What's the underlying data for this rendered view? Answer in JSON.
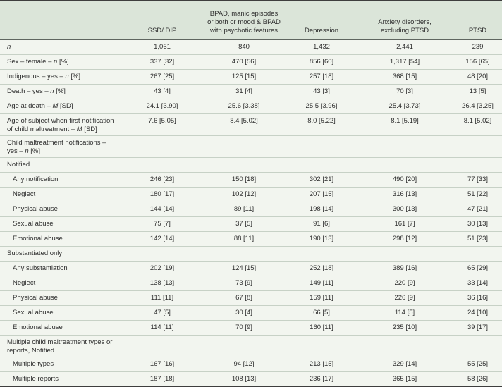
{
  "colors": {
    "frame": "#3e3e3e",
    "header_bg": "#dbe5d9",
    "header_divider": "#5f6660",
    "body_bg": "#f2f5ef",
    "row_divider": "#c7d1c6",
    "text": "#2e2e2e"
  },
  "table": {
    "columns": [
      {
        "id": "label",
        "label": ""
      },
      {
        "id": "ssd-dip",
        "label": "SSD/ DIP"
      },
      {
        "id": "bpad",
        "label": "BPAD, manic episodes\nor both or mood & BPAD\nwith psychotic features"
      },
      {
        "id": "depression",
        "label": "Depression"
      },
      {
        "id": "anxiety",
        "label": "Anxiety disorders,\nexcluding PTSD"
      },
      {
        "id": "ptsd",
        "label": "PTSD"
      }
    ],
    "rows": [
      {
        "label": "*n*",
        "lines": 1,
        "indent": 0,
        "values": [
          "1,061",
          "840",
          "1,432",
          "2,441",
          "239"
        ]
      },
      {
        "label": "Sex – female – *n* [%]",
        "lines": 1,
        "indent": 0,
        "values": [
          "337 [32]",
          "470 [56]",
          "856 [60]",
          "1,317 [54]",
          "156 [65]"
        ]
      },
      {
        "label": "Indigenous – yes – *n* [%]",
        "lines": 1,
        "indent": 0,
        "values": [
          "267 [25]",
          "125 [15]",
          "257 [18]",
          "368 [15]",
          "48 [20]"
        ]
      },
      {
        "label": "Death – yes – *n* [%]",
        "lines": 1,
        "indent": 0,
        "values": [
          "43 [4]",
          "31 [4]",
          "43 [3]",
          "70 [3]",
          "13 [5]"
        ]
      },
      {
        "label": "Age at death – *M* [SD]",
        "lines": 1,
        "indent": 0,
        "values": [
          "24.1 [3.90]",
          "25.6 [3.38]",
          "25.5 [3.96]",
          "25.4 [3.73]",
          "26.4 [3.25]"
        ]
      },
      {
        "label": "Age of subject when first notification\nof child maltreatment – *M* [SD]",
        "lines": 2,
        "indent": 0,
        "values": [
          "7.6 [5.05]",
          "8.4 [5.02]",
          "8.0 [5.22]",
          "8.1 [5.19]",
          "8.1 [5.02]"
        ]
      },
      {
        "label": "Child maltreatment notifications –\nyes – *n* [%]",
        "lines": 2,
        "indent": 0,
        "section": true,
        "values": [
          "",
          "",
          "",
          "",
          ""
        ]
      },
      {
        "label": "Notified",
        "lines": 1,
        "indent": 0,
        "section": true,
        "values": [
          "",
          "",
          "",
          "",
          ""
        ]
      },
      {
        "label": "Any notification",
        "lines": 1,
        "indent": 1,
        "values": [
          "246 [23]",
          "150 [18]",
          "302 [21]",
          "490 [20]",
          "77 [33]"
        ]
      },
      {
        "label": "Neglect",
        "lines": 1,
        "indent": 1,
        "values": [
          "180 [17]",
          "102 [12]",
          "207 [15]",
          "316 [13]",
          "51 [22]"
        ]
      },
      {
        "label": "Physical abuse",
        "lines": 1,
        "indent": 1,
        "values": [
          "144 [14]",
          "89 [11]",
          "198 [14]",
          "300 [13]",
          "47 [21]"
        ]
      },
      {
        "label": "Sexual abuse",
        "lines": 1,
        "indent": 1,
        "values": [
          "75 [7]",
          "37 [5]",
          "91 [6]",
          "161 [7]",
          "30 [13]"
        ]
      },
      {
        "label": "Emotional abuse",
        "lines": 1,
        "indent": 1,
        "values": [
          "142 [14]",
          "88 [11]",
          "190 [13]",
          "298 [12]",
          "51 [23]"
        ]
      },
      {
        "label": "Substantiated only",
        "lines": 1,
        "indent": 0,
        "section": true,
        "values": [
          "",
          "",
          "",
          "",
          ""
        ]
      },
      {
        "label": "Any substantiation",
        "lines": 1,
        "indent": 1,
        "values": [
          "202 [19]",
          "124 [15]",
          "252 [18]",
          "389 [16]",
          "65 [29]"
        ]
      },
      {
        "label": "Neglect",
        "lines": 1,
        "indent": 1,
        "values": [
          "138 [13]",
          "73 [9]",
          "149 [11]",
          "220 [9]",
          "33 [14]"
        ]
      },
      {
        "label": "Physical abuse",
        "lines": 1,
        "indent": 1,
        "values": [
          "111 [11]",
          "67 [8]",
          "159 [11]",
          "226 [9]",
          "36 [16]"
        ]
      },
      {
        "label": "Sexual abuse",
        "lines": 1,
        "indent": 1,
        "values": [
          "47 [5]",
          "30 [4]",
          "66 [5]",
          "114 [5]",
          "24 [10]"
        ]
      },
      {
        "label": "Emotional abuse",
        "lines": 1,
        "indent": 1,
        "values": [
          "114 [11]",
          "70 [9]",
          "160 [11]",
          "235 [10]",
          "39 [17]"
        ]
      },
      {
        "label": "Multiple child maltreatment types or\nreports, Notified",
        "lines": 2,
        "indent": 0,
        "section": true,
        "values": [
          "",
          "",
          "",
          "",
          ""
        ]
      },
      {
        "label": "Multiple types",
        "lines": 1,
        "indent": 1,
        "values": [
          "167 [16]",
          "94 [12]",
          "213 [15]",
          "329 [14]",
          "55 [25]"
        ]
      },
      {
        "label": "Multiple reports",
        "lines": 1,
        "indent": 1,
        "values": [
          "187 [18]",
          "108 [13]",
          "236 [17]",
          "365 [15]",
          "58 [26]"
        ]
      }
    ]
  }
}
